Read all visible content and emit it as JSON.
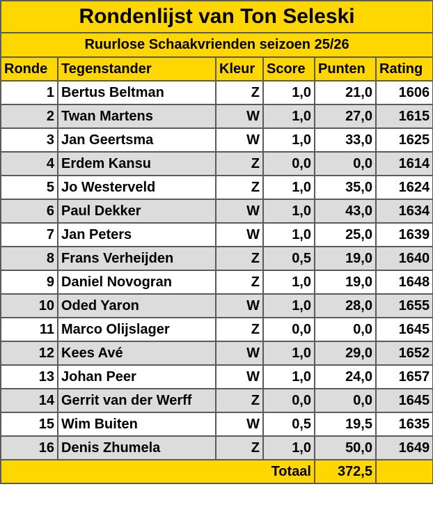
{
  "title": "Rondenlijst van Ton Seleski",
  "subtitle": "Ruurlose Schaakvrienden seizoen 25/26",
  "colors": {
    "header_bg": "#ffd700",
    "alt_row_bg": "#dcdcdc",
    "border": "#5a5a5a"
  },
  "columns": [
    "Ronde",
    "Tegenstander",
    "Kleur",
    "Score",
    "Punten",
    "Rating"
  ],
  "rows": [
    [
      "1",
      "Bertus Beltman",
      "Z",
      "1,0",
      "21,0",
      "1606"
    ],
    [
      "2",
      "Twan Martens",
      "W",
      "1,0",
      "27,0",
      "1615"
    ],
    [
      "3",
      "Jan Geertsma",
      "W",
      "1,0",
      "33,0",
      "1625"
    ],
    [
      "4",
      "Erdem Kansu",
      "Z",
      "0,0",
      "0,0",
      "1614"
    ],
    [
      "5",
      "Jo Westerveld",
      "Z",
      "1,0",
      "35,0",
      "1624"
    ],
    [
      "6",
      "Paul Dekker",
      "W",
      "1,0",
      "43,0",
      "1634"
    ],
    [
      "7",
      "Jan Peters",
      "W",
      "1,0",
      "25,0",
      "1639"
    ],
    [
      "8",
      "Frans Verheijden",
      "Z",
      "0,5",
      "19,0",
      "1640"
    ],
    [
      "9",
      "Daniel Novogran",
      "Z",
      "1,0",
      "19,0",
      "1648"
    ],
    [
      "10",
      "Oded Yaron",
      "W",
      "1,0",
      "28,0",
      "1655"
    ],
    [
      "11",
      "Marco Olijslager",
      "Z",
      "0,0",
      "0,0",
      "1645"
    ],
    [
      "12",
      "Kees Avé",
      "W",
      "1,0",
      "29,0",
      "1652"
    ],
    [
      "13",
      "Johan Peer",
      "W",
      "1,0",
      "24,0",
      "1657"
    ],
    [
      "14",
      "Gerrit van der Werff",
      "Z",
      "0,0",
      "0,0",
      "1645"
    ],
    [
      "15",
      "Wim Buiten",
      "W",
      "0,5",
      "19,5",
      "1635"
    ],
    [
      "16",
      "Denis Zhumela",
      "Z",
      "1,0",
      "50,0",
      "1649"
    ]
  ],
  "footer": {
    "label": "Totaal",
    "total": "372,5"
  }
}
